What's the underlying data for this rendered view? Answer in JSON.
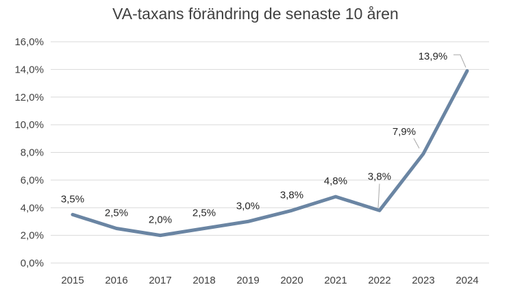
{
  "chart_data": {
    "type": "line",
    "title": "VA-taxans förändring de senaste 10 åren",
    "xlabel": "",
    "ylabel": "",
    "categories": [
      "2015",
      "2016",
      "2017",
      "2018",
      "2019",
      "2020",
      "2021",
      "2022",
      "2023",
      "2024"
    ],
    "series": [
      {
        "values": [
          3.5,
          2.5,
          2.0,
          2.5,
          3.0,
          3.8,
          4.8,
          3.8,
          7.9,
          13.9
        ],
        "data_labels": [
          "3,5%",
          "2,5%",
          "2,0%",
          "2,5%",
          "3,0%",
          "3,8%",
          "4,8%",
          "3,8%",
          "7,9%",
          "13,9%"
        ]
      }
    ],
    "ylim": [
      0,
      16
    ],
    "y_ticks": [
      0,
      2,
      4,
      6,
      8,
      10,
      12,
      14,
      16
    ],
    "y_tick_labels": [
      "0,0%",
      "2,0%",
      "4,0%",
      "6,0%",
      "8,0%",
      "10,0%",
      "12,0%",
      "14,0%",
      "16,0%"
    ],
    "grid": true,
    "legend": "none",
    "colors": {
      "line": "#6a85a3",
      "grid": "#d9d9d9",
      "text": "#404040",
      "leader": "#a6a6a6"
    }
  }
}
